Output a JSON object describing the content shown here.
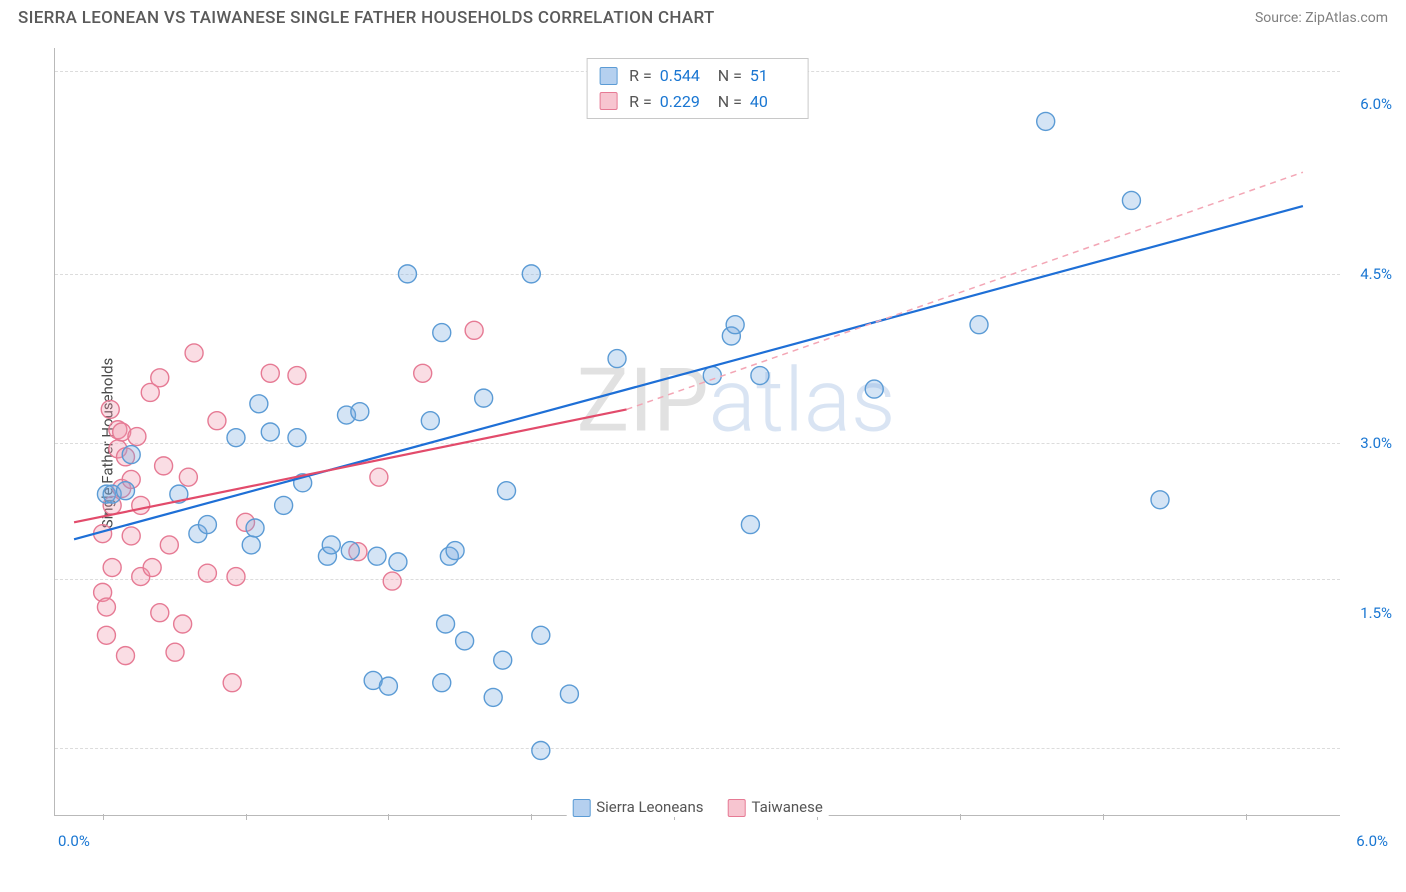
{
  "header": {
    "title": "SIERRA LEONEAN VS TAIWANESE SINGLE FATHER HOUSEHOLDS CORRELATION CHART",
    "source": "Source: ZipAtlas.com"
  },
  "chart": {
    "type": "scatter",
    "ylabel": "Single Father Households",
    "xlim": [
      -0.25,
      6.5
    ],
    "ylim": [
      -0.3,
      6.5
    ],
    "xticks_minor": [
      0.0,
      0.75,
      1.5,
      2.25,
      3.0,
      3.75,
      4.5,
      5.25,
      6.0
    ],
    "xticks_label": {
      "left": "0.0%",
      "right": "6.0%"
    },
    "yticks": [
      {
        "v": 1.5,
        "label": "1.5%"
      },
      {
        "v": 3.0,
        "label": "3.0%"
      },
      {
        "v": 4.5,
        "label": "4.5%"
      },
      {
        "v": 6.0,
        "label": "6.0%"
      }
    ],
    "grid_y": [
      0.3,
      1.8,
      3.0,
      4.5,
      6.3
    ],
    "grid_color": "#dcdcdc",
    "background_color": "#ffffff",
    "marker_radius": 9,
    "marker_stroke_width": 1.4,
    "line_width": 2.2,
    "series": {
      "blue": {
        "label": "Sierra Leoneans",
        "fill": "rgba(120,170,225,0.32)",
        "stroke": "#5b9bd5",
        "line_color": "#1e6fd6",
        "r": "0.544",
        "n": "51",
        "trend": {
          "x1": -0.15,
          "y1": 2.15,
          "x2": 6.3,
          "y2": 5.1
        },
        "points": [
          [
            0.02,
            2.55
          ],
          [
            0.05,
            2.55
          ],
          [
            0.12,
            2.58
          ],
          [
            0.15,
            2.9
          ],
          [
            0.5,
            2.2
          ],
          [
            0.55,
            2.28
          ],
          [
            0.78,
            2.1
          ],
          [
            0.8,
            2.25
          ],
          [
            0.82,
            3.35
          ],
          [
            0.88,
            3.1
          ],
          [
            0.95,
            2.45
          ],
          [
            1.02,
            3.05
          ],
          [
            1.18,
            2.0
          ],
          [
            1.2,
            2.1
          ],
          [
            1.28,
            3.25
          ],
          [
            1.3,
            2.05
          ],
          [
            1.35,
            3.28
          ],
          [
            1.42,
            0.9
          ],
          [
            1.44,
            2.0
          ],
          [
            1.5,
            0.85
          ],
          [
            1.6,
            4.5
          ],
          [
            1.72,
            3.2
          ],
          [
            1.78,
            3.98
          ],
          [
            1.78,
            0.88
          ],
          [
            1.82,
            2.0
          ],
          [
            1.85,
            2.05
          ],
          [
            1.9,
            1.25
          ],
          [
            2.0,
            3.4
          ],
          [
            2.1,
            1.08
          ],
          [
            2.12,
            2.58
          ],
          [
            2.25,
            4.5
          ],
          [
            2.3,
            1.3
          ],
          [
            2.3,
            0.28
          ],
          [
            2.45,
            0.78
          ],
          [
            2.7,
            3.75
          ],
          [
            3.2,
            3.6
          ],
          [
            3.3,
            3.95
          ],
          [
            3.32,
            4.05
          ],
          [
            3.4,
            2.28
          ],
          [
            3.45,
            3.6
          ],
          [
            4.05,
            3.48
          ],
          [
            4.6,
            4.05
          ],
          [
            4.95,
            5.85
          ],
          [
            5.4,
            5.15
          ],
          [
            5.55,
            2.5
          ],
          [
            0.7,
            3.05
          ],
          [
            1.05,
            2.65
          ],
          [
            1.55,
            1.95
          ],
          [
            1.8,
            1.4
          ],
          [
            2.05,
            0.75
          ],
          [
            0.4,
            2.55
          ]
        ]
      },
      "pink": {
        "label": "Taiwanese",
        "fill": "rgba(240,150,170,0.32)",
        "stroke": "#e67a94",
        "line_color": "#e24b6b",
        "dash_color": "#f3a6b5",
        "r": "0.229",
        "n": "40",
        "trend_solid": {
          "x1": -0.15,
          "y1": 2.3,
          "x2": 2.75,
          "y2": 3.3
        },
        "trend_dash": {
          "x1": 2.75,
          "y1": 3.3,
          "x2": 6.3,
          "y2": 5.4
        },
        "points": [
          [
            0.0,
            1.68
          ],
          [
            0.0,
            2.2
          ],
          [
            0.02,
            1.55
          ],
          [
            0.02,
            1.3
          ],
          [
            0.04,
            3.3
          ],
          [
            0.05,
            1.9
          ],
          [
            0.05,
            2.45
          ],
          [
            0.08,
            2.95
          ],
          [
            0.08,
            3.12
          ],
          [
            0.1,
            2.6
          ],
          [
            0.1,
            3.1
          ],
          [
            0.12,
            1.12
          ],
          [
            0.12,
            2.88
          ],
          [
            0.15,
            2.18
          ],
          [
            0.15,
            2.68
          ],
          [
            0.18,
            3.06
          ],
          [
            0.2,
            1.82
          ],
          [
            0.2,
            2.45
          ],
          [
            0.25,
            3.45
          ],
          [
            0.26,
            1.9
          ],
          [
            0.3,
            1.5
          ],
          [
            0.3,
            3.58
          ],
          [
            0.32,
            2.8
          ],
          [
            0.35,
            2.1
          ],
          [
            0.42,
            1.4
          ],
          [
            0.45,
            2.7
          ],
          [
            0.48,
            3.8
          ],
          [
            0.55,
            1.85
          ],
          [
            0.6,
            3.2
          ],
          [
            0.68,
            0.88
          ],
          [
            0.7,
            1.82
          ],
          [
            0.75,
            2.3
          ],
          [
            0.88,
            3.62
          ],
          [
            1.02,
            3.6
          ],
          [
            1.34,
            2.04
          ],
          [
            1.45,
            2.7
          ],
          [
            1.52,
            1.78
          ],
          [
            1.68,
            3.62
          ],
          [
            1.95,
            4.0
          ],
          [
            0.38,
            1.15
          ]
        ]
      }
    },
    "watermark": {
      "zip": "ZIP",
      "atlas": "atlas"
    }
  },
  "legend_top": {
    "rows": [
      {
        "swatch": "blue",
        "r_label": "R =",
        "r_val": "0.544",
        "n_label": "N =",
        "n_val": "51"
      },
      {
        "swatch": "pink",
        "r_label": "R =",
        "r_val": "0.229",
        "n_label": "N =",
        "n_val": "40"
      }
    ]
  },
  "legend_bottom": {
    "items": [
      {
        "swatch": "blue",
        "label": "Sierra Leoneans"
      },
      {
        "swatch": "pink",
        "label": "Taiwanese"
      }
    ]
  },
  "swatch_colors": {
    "blue": {
      "fill": "rgba(120,170,225,0.55)",
      "border": "#5b9bd5"
    },
    "pink": {
      "fill": "rgba(240,150,170,0.55)",
      "border": "#e67a94"
    }
  }
}
